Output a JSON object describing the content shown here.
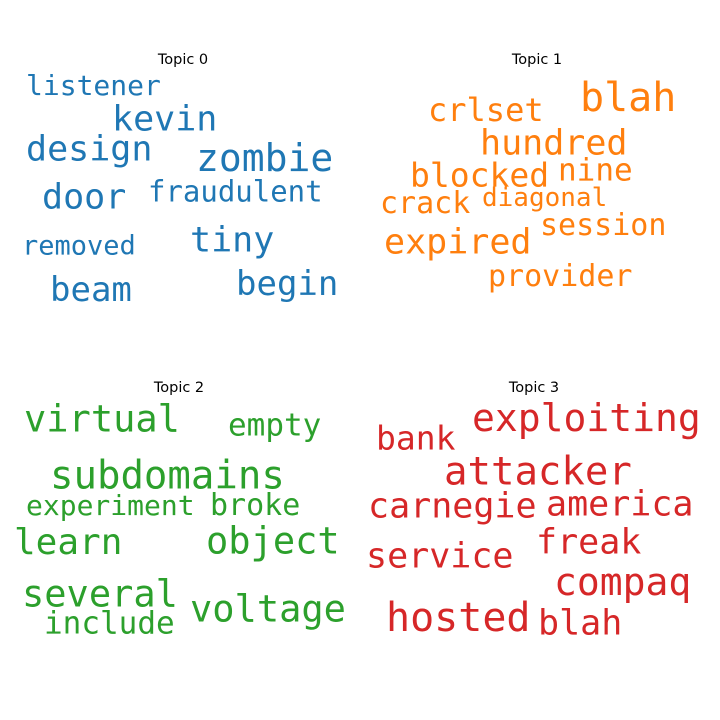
{
  "chart_data": [
    {
      "type": "wordcloud",
      "title": "Topic 0",
      "color": "#1f77b4",
      "words": [
        "zombie",
        "kevin",
        "design",
        "door",
        "fraudulent",
        "tiny",
        "listener",
        "removed",
        "beam",
        "begin"
      ]
    },
    {
      "type": "wordcloud",
      "title": "Topic 1",
      "color": "#ff7f0e",
      "words": [
        "blah",
        "hundred",
        "crlset",
        "blocked",
        "nine",
        "crack",
        "diagonal",
        "session",
        "expired",
        "provider"
      ]
    },
    {
      "type": "wordcloud",
      "title": "Topic 2",
      "color": "#2ca02c",
      "words": [
        "virtual",
        "empty",
        "subdomains",
        "experiment",
        "broke",
        "learn",
        "object",
        "several",
        "voltage",
        "include"
      ]
    },
    {
      "type": "wordcloud",
      "title": "Topic 3",
      "color": "#d62728",
      "words": [
        "exploiting",
        "bank",
        "attacker",
        "carnegie",
        "america",
        "service",
        "freak",
        "compaq",
        "hosted",
        "blah"
      ]
    }
  ]
}
